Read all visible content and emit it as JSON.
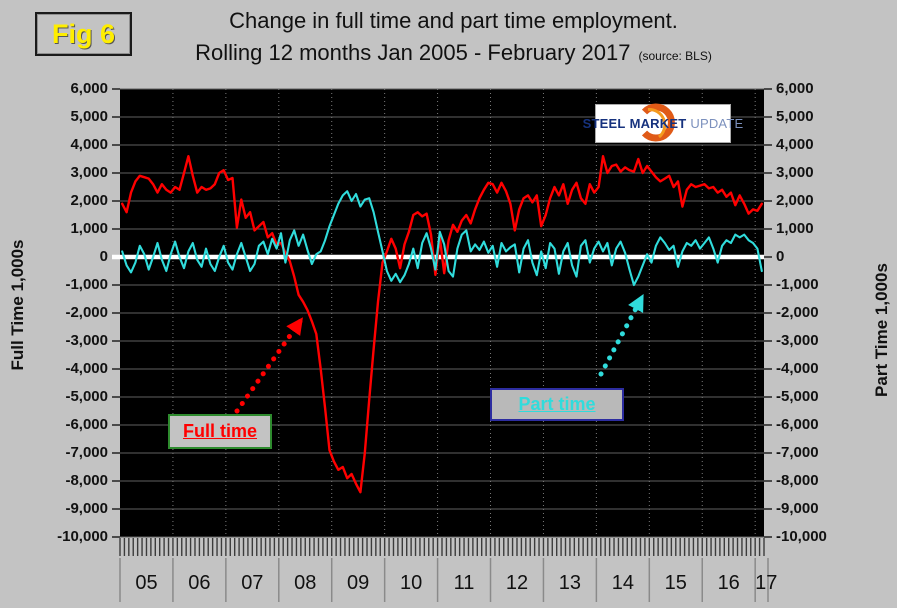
{
  "fig_label": "Fig 6",
  "title": {
    "line1": "Change in full time and part time employment.",
    "line2": "Rolling 12 months Jan 2005 - February 2017",
    "source": "(source: BLS)"
  },
  "logo": {
    "word1": "STEEL",
    "word2": "MARKET",
    "word3": "UPDATE"
  },
  "left_axis_title": "Full Time 1,000s",
  "right_axis_title": "Part Time 1,000s",
  "annotations": {
    "full_time_label": "Full time",
    "part_time_label": "Part time"
  },
  "colors": {
    "background": "#c3c3c3",
    "plot_background": "#000000",
    "full_time_line": "#ff0000",
    "part_time_line": "#30dcdc",
    "zero_line": "#ffffff",
    "gridline": "#5f5f5f",
    "fig_label_text": "#ffee00",
    "full_time_box_border": "#2e8b2e",
    "part_time_box_border": "#2d2da0"
  },
  "chart_data": {
    "type": "line",
    "title": "Change in full time and part time employment. Rolling 12 months Jan 2005 - February 2017",
    "x_start": "2005-01",
    "x_end": "2017-02",
    "months_per_year": 12,
    "x_tick_labels": [
      "05",
      "06",
      "07",
      "08",
      "09",
      "10",
      "11",
      "12",
      "13",
      "14",
      "15",
      "16",
      "17"
    ],
    "y_ticks": [
      6000,
      5000,
      4000,
      3000,
      2000,
      1000,
      0,
      -1000,
      -2000,
      -3000,
      -4000,
      -5000,
      -6000,
      -7000,
      -8000,
      -9000,
      -10000
    ],
    "ylim": [
      -10000,
      6000
    ],
    "ylabel_left": "Full Time 1,000s",
    "ylabel_right": "Part Time 1,000s",
    "grid": true,
    "legend_position": "annotated-boxes",
    "units": "thousands of jobs, rolling 12-month change",
    "series": [
      {
        "name": "Full time",
        "color": "#ff0000",
        "values": [
          1900,
          1600,
          2300,
          2700,
          2900,
          2850,
          2800,
          2600,
          2300,
          2600,
          2400,
          2300,
          2500,
          2400,
          3000,
          3600,
          2900,
          2300,
          2500,
          2400,
          2450,
          2600,
          3000,
          3100,
          2750,
          2820,
          1050,
          2050,
          1400,
          1600,
          950,
          1100,
          1250,
          700,
          850,
          450,
          500,
          150,
          -150,
          -700,
          -1350,
          -1600,
          -1900,
          -2300,
          -2750,
          -4000,
          -5400,
          -6900,
          -7300,
          -7600,
          -7500,
          -7900,
          -7750,
          -8100,
          -8400,
          -7000,
          -5100,
          -3300,
          -1600,
          -200,
          200,
          650,
          300,
          -400,
          450,
          900,
          1500,
          1600,
          1450,
          1550,
          800,
          -640,
          700,
          -580,
          600,
          1150,
          900,
          1300,
          1500,
          1200,
          1700,
          2100,
          2400,
          2650,
          2600,
          2300,
          2650,
          2350,
          1900,
          950,
          1700,
          2100,
          2200,
          1950,
          2200,
          1100,
          1500,
          2100,
          2500,
          2200,
          2600,
          1900,
          2400,
          2650,
          2100,
          1900,
          2600,
          2300,
          2500,
          3600,
          3000,
          3250,
          3300,
          3050,
          3200,
          3100,
          3050,
          3500,
          3000,
          3250,
          3050,
          2850,
          2700,
          2800,
          2900,
          2500,
          2700,
          1800,
          2400,
          2600,
          2500,
          2550,
          2600,
          2450,
          2500,
          2300,
          2400,
          2150,
          2300,
          1850,
          2200,
          1900,
          1550,
          1700,
          1650,
          1900
        ]
      },
      {
        "name": "Part time",
        "color": "#30dcdc",
        "values": [
          200,
          -300,
          -550,
          -200,
          400,
          100,
          -450,
          0,
          500,
          -100,
          -500,
          100,
          550,
          0,
          -400,
          200,
          500,
          -100,
          -350,
          300,
          -250,
          -500,
          0,
          400,
          -200,
          -450,
          100,
          500,
          0,
          -500,
          -250,
          400,
          550,
          100,
          650,
          300,
          850,
          -200,
          600,
          950,
          400,
          800,
          250,
          -250,
          100,
          200,
          600,
          1100,
          1500,
          1900,
          2200,
          2350,
          2000,
          2250,
          1800,
          2050,
          2100,
          1600,
          900,
          200,
          -500,
          -850,
          -600,
          -900,
          -650,
          -250,
          300,
          -400,
          500,
          850,
          300,
          -450,
          900,
          450,
          -500,
          -700,
          300,
          800,
          950,
          200,
          450,
          250,
          550,
          150,
          400,
          -350,
          500,
          200,
          350,
          450,
          -550,
          300,
          600,
          -200,
          -650,
          200,
          -400,
          500,
          300,
          -600,
          200,
          500,
          -300,
          -700,
          400,
          600,
          -200,
          300,
          550,
          200,
          500,
          -300,
          300,
          550,
          150,
          -450,
          -1000,
          -700,
          -300,
          100,
          -200,
          400,
          700,
          500,
          250,
          400,
          -350,
          200,
          500,
          400,
          600,
          300,
          500,
          700,
          300,
          -200,
          400,
          600,
          500,
          800,
          700,
          800,
          600,
          500,
          300,
          -500
        ]
      }
    ]
  }
}
